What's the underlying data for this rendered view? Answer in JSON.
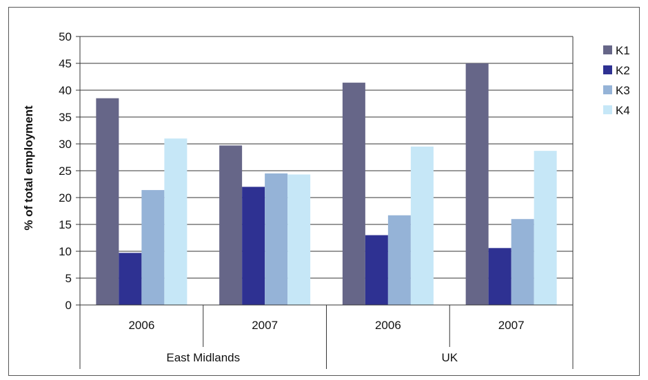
{
  "chart_data": {
    "type": "bar",
    "title": "",
    "xlabel": "",
    "ylabel": "% of total employment",
    "ylim": [
      0,
      50
    ],
    "yticks": [
      0,
      5,
      10,
      15,
      20,
      25,
      30,
      35,
      40,
      45,
      50
    ],
    "grid": true,
    "legend_position": "right",
    "groups": [
      {
        "label": "East Midlands",
        "categories": [
          "2006",
          "2007"
        ]
      },
      {
        "label": "UK",
        "categories": [
          "2006",
          "2007"
        ]
      }
    ],
    "categories": [
      "2006",
      "2007",
      "2006",
      "2007"
    ],
    "series": [
      {
        "name": "K1",
        "color": "#666688",
        "values": [
          38.5,
          29.7,
          41.4,
          45.0
        ]
      },
      {
        "name": "K2",
        "color": "#2e3192",
        "values": [
          9.7,
          22.0,
          13.0,
          10.6
        ]
      },
      {
        "name": "K3",
        "color": "#95b3d7",
        "values": [
          21.4,
          24.5,
          16.7,
          16.0
        ]
      },
      {
        "name": "K4",
        "color": "#c6e7f7",
        "values": [
          31.0,
          24.3,
          29.5,
          28.7
        ]
      }
    ]
  }
}
